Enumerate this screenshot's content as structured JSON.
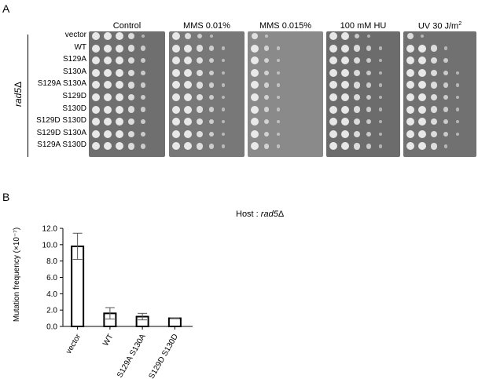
{
  "panel_a": {
    "letter": "A",
    "genotype_main": "rad5",
    "genotype_delta": "Δ",
    "conditions": [
      {
        "label": "Control",
        "color": "#6f6f6f"
      },
      {
        "label": "MMS 0.01%",
        "color": "#787878"
      },
      {
        "label": "MMS 0.015%",
        "color": "#8a8a8a"
      },
      {
        "label": "100 mM HU",
        "color": "#6c6c6c"
      },
      {
        "label": "UV 30 J/m",
        "sup": "2",
        "color": "#717171"
      }
    ],
    "strains": [
      "vector",
      "WT",
      "S129A",
      "S130A",
      "S129A S130A",
      "S129D",
      "S130D",
      "S129D S130D",
      "S129D S130A",
      "S129A S130D"
    ],
    "growth": [
      [
        [
          4,
          4,
          4,
          3,
          1
        ],
        [
          4,
          3,
          2,
          1,
          0
        ],
        [
          3,
          1,
          0,
          0,
          0
        ],
        [
          4,
          4,
          2,
          1,
          0
        ],
        [
          3,
          1,
          0,
          0,
          0
        ]
      ],
      [
        [
          4,
          4,
          4,
          3,
          2
        ],
        [
          4,
          4,
          3,
          2,
          1
        ],
        [
          4,
          2,
          1,
          0,
          0
        ],
        [
          4,
          4,
          3,
          2,
          1
        ],
        [
          4,
          4,
          3,
          1,
          0
        ]
      ],
      [
        [
          4,
          4,
          4,
          3,
          2
        ],
        [
          4,
          4,
          3,
          2,
          1
        ],
        [
          4,
          2,
          1,
          0,
          0
        ],
        [
          4,
          4,
          3,
          2,
          1
        ],
        [
          4,
          4,
          3,
          2,
          0
        ]
      ],
      [
        [
          4,
          4,
          4,
          3,
          2
        ],
        [
          4,
          4,
          3,
          2,
          1
        ],
        [
          4,
          2,
          1,
          0,
          0
        ],
        [
          4,
          4,
          3,
          2,
          1
        ],
        [
          4,
          4,
          3,
          2,
          1
        ]
      ],
      [
        [
          4,
          4,
          4,
          3,
          2
        ],
        [
          4,
          4,
          3,
          2,
          1
        ],
        [
          4,
          2,
          1,
          0,
          0
        ],
        [
          4,
          4,
          3,
          2,
          1
        ],
        [
          4,
          4,
          3,
          2,
          1
        ]
      ],
      [
        [
          4,
          4,
          4,
          3,
          2
        ],
        [
          4,
          4,
          3,
          2,
          1
        ],
        [
          4,
          2,
          1,
          0,
          0
        ],
        [
          4,
          4,
          3,
          2,
          1
        ],
        [
          4,
          4,
          3,
          2,
          1
        ]
      ],
      [
        [
          4,
          4,
          4,
          3,
          2
        ],
        [
          4,
          4,
          3,
          2,
          1
        ],
        [
          4,
          2,
          1,
          0,
          0
        ],
        [
          4,
          4,
          3,
          2,
          1
        ],
        [
          4,
          4,
          3,
          2,
          1
        ]
      ],
      [
        [
          4,
          4,
          4,
          3,
          2
        ],
        [
          4,
          4,
          3,
          2,
          1
        ],
        [
          4,
          2,
          1,
          0,
          0
        ],
        [
          4,
          4,
          3,
          2,
          1
        ],
        [
          4,
          4,
          3,
          2,
          1
        ]
      ],
      [
        [
          4,
          4,
          4,
          3,
          2
        ],
        [
          4,
          4,
          3,
          2,
          1
        ],
        [
          4,
          2,
          1,
          0,
          0
        ],
        [
          4,
          4,
          3,
          2,
          1
        ],
        [
          4,
          4,
          3,
          2,
          1
        ]
      ],
      [
        [
          4,
          4,
          4,
          3,
          2
        ],
        [
          4,
          4,
          3,
          2,
          1
        ],
        [
          4,
          2,
          1,
          0,
          0
        ],
        [
          4,
          4,
          3,
          2,
          1
        ],
        [
          4,
          4,
          3,
          1,
          0
        ]
      ]
    ]
  },
  "panel_b": {
    "letter": "B",
    "host_label": "Host : ",
    "host_main": "rad5",
    "host_delta": "Δ"
  },
  "chart_data": {
    "type": "bar",
    "categories": [
      "vector",
      "WT",
      "S129A S130A",
      "S129D S130D"
    ],
    "values": [
      9.8,
      1.6,
      1.2,
      1.0
    ],
    "errors": [
      1.6,
      0.7,
      0.4,
      0.05
    ],
    "ylabel": "Mutation frequency (×10⁻⁷)",
    "ylim": [
      0,
      12
    ],
    "ytick_labels": [
      "0.0",
      "2.0",
      "4.0",
      "6.0",
      "8.0",
      "10.0",
      "12.0"
    ],
    "grid": false,
    "bar_fill": "#ffffff",
    "bar_stroke": "#000000"
  }
}
